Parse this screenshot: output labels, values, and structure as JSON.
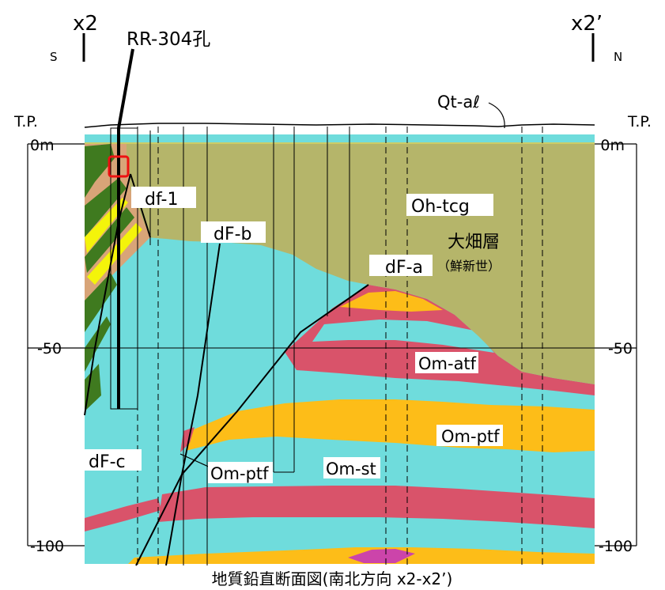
{
  "section": {
    "left_end": "x2",
    "right_end": "x2’",
    "left_direction": "S",
    "right_direction": "N",
    "borehole": "RR-304孔",
    "surface_unit": "Qt-aℓ",
    "datum_left": "T.P.",
    "datum_right": "T.P.",
    "caption": "地質鉛直断面図(南北方向 x2-x2’)"
  },
  "depth_ticks_left": [
    "0m",
    "-50",
    "-100"
  ],
  "depth_ticks_right": [
    "0m",
    "-50",
    "-100"
  ],
  "unit_labels": {
    "df1": "df-1",
    "dfb": "dF-b",
    "dfa": "dF-a",
    "dfc": "dF-c",
    "oh_tcg": "Oh-tcg",
    "formation": "大畑層",
    "epoch": "（鮮新世）",
    "om_atf": "Om-atf",
    "om_ptf_right": "Om-ptf",
    "om_ptf_left": "Om-ptf",
    "om_st": "Om-st"
  },
  "colors": {
    "olive": "#b5b56a",
    "cyan": "#6fdcdc",
    "red": "#d9536a",
    "orange": "#fdbd18",
    "tan": "#d8a478",
    "green": "#3f7a1f",
    "yellow": "#f4f40a",
    "magenta": "#cc44aa",
    "highlight": "#ee1111"
  }
}
